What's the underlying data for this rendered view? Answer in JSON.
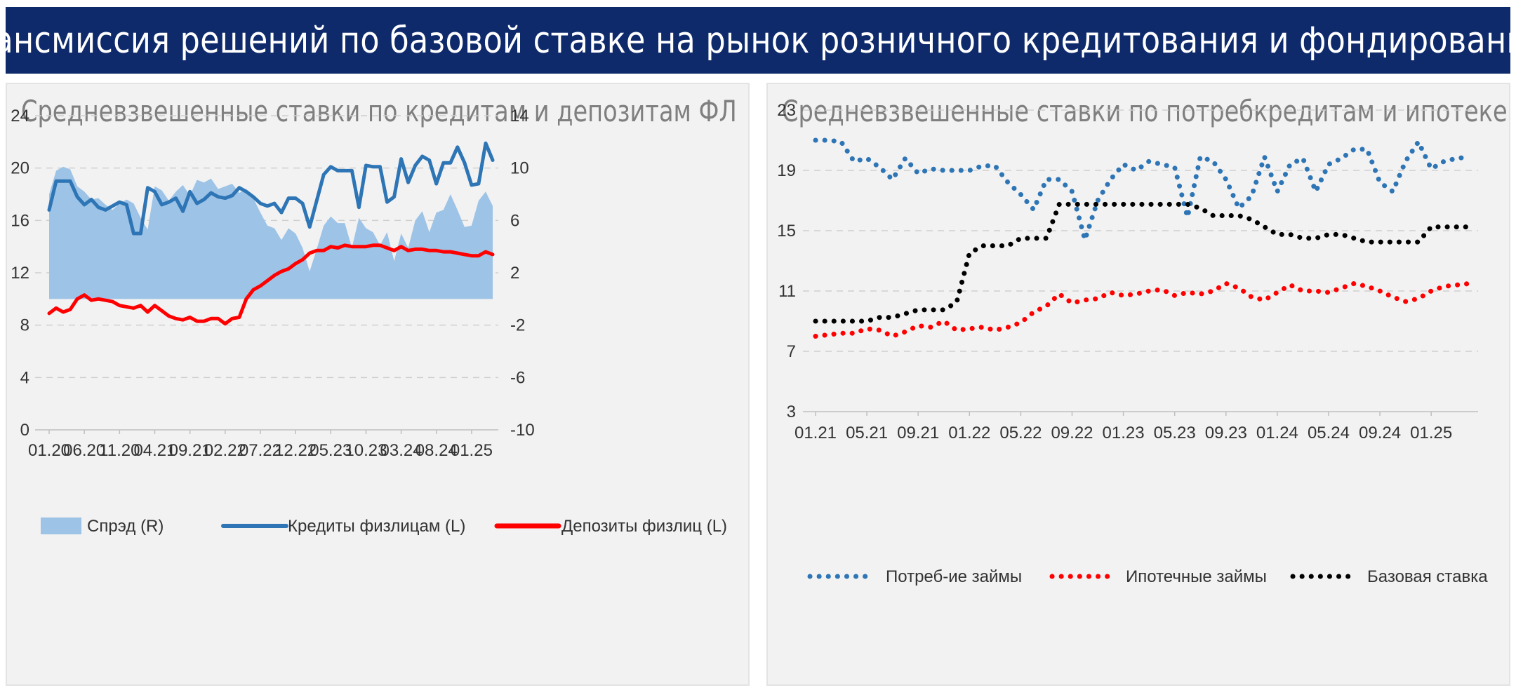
{
  "banner": {
    "title": "Трансмиссия решений по базовой ставке на рынок розничного кредитования и фондирования*"
  },
  "colors": {
    "banner_bg": "#0e2a6b",
    "panel_bg": "#f2f2f2",
    "credit": "#2e75b6",
    "deposit": "#ff0000",
    "spread": "#9dc3e6",
    "consumer": "#2e75b6",
    "mortgage": "#ff0000",
    "key_rate": "#000000"
  },
  "chart_data": [
    {
      "type": "line",
      "title": "Средневзвешенные ставки по кредитам и депозитам ФЛ",
      "x_tick_labels": [
        "01.20",
        "06.20",
        "11.20",
        "04.21",
        "09.21",
        "02.22",
        "07.22",
        "12.22",
        "05.23",
        "10.23",
        "03.24",
        "08.24",
        "01.25"
      ],
      "x": [
        "01.20",
        "02.20",
        "03.20",
        "04.20",
        "05.20",
        "06.20",
        "07.20",
        "08.20",
        "09.20",
        "10.20",
        "11.20",
        "12.20",
        "01.21",
        "02.21",
        "03.21",
        "04.21",
        "05.21",
        "06.21",
        "07.21",
        "08.21",
        "09.21",
        "10.21",
        "11.21",
        "12.21",
        "01.22",
        "02.22",
        "03.22",
        "04.22",
        "05.22",
        "06.22",
        "07.22",
        "08.22",
        "09.22",
        "10.22",
        "11.22",
        "12.22",
        "01.23",
        "02.23",
        "03.23",
        "04.23",
        "05.23",
        "06.23",
        "07.23",
        "08.23",
        "09.23",
        "10.23",
        "11.23",
        "12.23",
        "01.24",
        "02.24",
        "03.24",
        "04.24",
        "05.24",
        "06.24",
        "07.24",
        "08.24",
        "09.24",
        "10.24",
        "11.24",
        "12.24",
        "01.25",
        "02.25",
        "03.25",
        "04.25"
      ],
      "y_left_ticks": [
        "0",
        "4",
        "8",
        "12",
        "16",
        "20",
        "24"
      ],
      "y_right_ticks": [
        "-10",
        "-6",
        "-2",
        "2",
        "6",
        "10",
        "14"
      ],
      "ylim_left": [
        0,
        24
      ],
      "ylim_right": [
        -10,
        14
      ],
      "grid": true,
      "legend": "bottom",
      "series": [
        {
          "name": "Спрэд (R)",
          "axis": "right",
          "kind": "area",
          "values": [
            8.0,
            9.8,
            10.1,
            9.9,
            8.6,
            8.2,
            7.6,
            7.7,
            7.2,
            6.8,
            7.3,
            7.6,
            7.3,
            6.2,
            5.3,
            8.6,
            8.3,
            7.5,
            8.2,
            8.7,
            7.9,
            9.1,
            8.9,
            9.2,
            8.4,
            8.6,
            8.8,
            8.1,
            8.4,
            7.7,
            6.6,
            5.6,
            5.4,
            4.5,
            5.4,
            5.0,
            3.9,
            2.1,
            3.8,
            5.6,
            6.3,
            5.8,
            5.8,
            3.9,
            6.2,
            5.4,
            5.1,
            4.1,
            5.1,
            2.9,
            5.0,
            3.9,
            6.0,
            6.7,
            5.1,
            6.6,
            6.8,
            8.0,
            6.8,
            5.5,
            5.6,
            7.5,
            8.2,
            7.1
          ]
        },
        {
          "name": "Кредиты физлицам (L)",
          "axis": "left",
          "kind": "line",
          "values": [
            16.8,
            19.0,
            19.0,
            19.0,
            17.8,
            17.2,
            17.6,
            17.0,
            16.8,
            17.1,
            17.4,
            17.2,
            15.0,
            15.0,
            18.5,
            18.2,
            17.2,
            17.4,
            17.7,
            16.7,
            18.2,
            17.3,
            17.6,
            18.1,
            17.8,
            17.7,
            17.9,
            18.5,
            18.2,
            17.8,
            17.3,
            17.1,
            17.3,
            16.6,
            17.7,
            17.7,
            17.3,
            15.5,
            17.5,
            19.5,
            20.1,
            19.8,
            19.8,
            19.8,
            17.0,
            20.2,
            20.1,
            20.1,
            17.4,
            17.8,
            20.7,
            18.9,
            20.2,
            20.9,
            20.6,
            18.8,
            20.4,
            20.4,
            21.6,
            20.4,
            18.7,
            18.8,
            21.9,
            20.6
          ]
        },
        {
          "name": "Депозиты физлиц (L)",
          "axis": "left",
          "kind": "line",
          "values": [
            8.9,
            9.3,
            9.0,
            9.2,
            10.0,
            10.3,
            9.9,
            10.0,
            9.9,
            9.8,
            9.5,
            9.4,
            9.3,
            9.5,
            9.0,
            9.5,
            9.1,
            8.7,
            8.5,
            8.4,
            8.6,
            8.3,
            8.3,
            8.5,
            8.5,
            8.1,
            8.5,
            8.6,
            10.0,
            10.7,
            11.0,
            11.4,
            11.8,
            12.1,
            12.3,
            12.7,
            13.0,
            13.5,
            13.7,
            13.7,
            14.0,
            13.9,
            14.1,
            14.0,
            14.0,
            14.0,
            14.1,
            14.1,
            13.9,
            13.7,
            14.0,
            13.7,
            13.8,
            13.8,
            13.7,
            13.7,
            13.6,
            13.6,
            13.5,
            13.4,
            13.3,
            13.3,
            13.6,
            13.4
          ]
        }
      ]
    },
    {
      "type": "line",
      "title": "Средневзвешенные ставки по потребкредитам и ипотеке",
      "x_tick_labels": [
        "01.21",
        "05.21",
        "09.21",
        "01.22",
        "05.22",
        "09.22",
        "01.23",
        "05.23",
        "09.23",
        "01.24",
        "05.24",
        "09.24",
        "01.25"
      ],
      "x": [
        "01.21",
        "02.21",
        "03.21",
        "04.21",
        "05.21",
        "06.21",
        "07.21",
        "08.21",
        "09.21",
        "10.21",
        "11.21",
        "12.21",
        "01.22",
        "02.22",
        "03.22",
        "04.22",
        "05.22",
        "06.22",
        "07.22",
        "08.22",
        "09.22",
        "10.22",
        "11.22",
        "12.22",
        "01.23",
        "02.23",
        "03.23",
        "04.23",
        "05.23",
        "06.23",
        "07.23",
        "08.23",
        "09.23",
        "10.23",
        "11.23",
        "12.23",
        "01.24",
        "02.24",
        "03.24",
        "04.24",
        "05.24",
        "06.24",
        "07.24",
        "08.24",
        "09.24",
        "10.24",
        "11.24",
        "12.24",
        "01.25",
        "02.25",
        "03.25",
        "04.25"
      ],
      "y_ticks": [
        "3",
        "7",
        "11",
        "15",
        "19",
        "23"
      ],
      "ylim": [
        3,
        23
      ],
      "grid": true,
      "legend": "bottom",
      "series": [
        {
          "name": "Потреб-ие займы",
          "style": "dotted",
          "values": [
            21.0,
            21.0,
            20.9,
            19.6,
            19.8,
            19.2,
            18.4,
            19.8,
            18.8,
            19.1,
            19.0,
            19.0,
            19.0,
            19.3,
            19.3,
            18.2,
            17.4,
            16.4,
            18.4,
            18.4,
            17.6,
            14.4,
            17.0,
            18.4,
            19.4,
            19.0,
            19.6,
            19.4,
            19.2,
            15.9,
            19.9,
            19.6,
            18.4,
            16.5,
            17.3,
            19.9,
            17.6,
            19.4,
            19.8,
            17.6,
            19.4,
            19.8,
            20.4,
            20.4,
            18.2,
            17.6,
            19.6,
            20.9,
            19.1,
            19.6,
            19.8,
            19.9
          ]
        },
        {
          "name": "Ипотечные займы",
          "style": "dotted",
          "values": [
            8.0,
            8.1,
            8.2,
            8.2,
            8.5,
            8.4,
            8.0,
            8.3,
            8.7,
            8.6,
            9.0,
            8.4,
            8.5,
            8.6,
            8.4,
            8.6,
            8.9,
            9.6,
            10.0,
            10.8,
            10.2,
            10.4,
            10.5,
            10.9,
            10.7,
            10.8,
            11.0,
            11.1,
            10.7,
            10.9,
            10.8,
            11.0,
            11.5,
            11.2,
            10.6,
            10.4,
            10.9,
            11.4,
            11.0,
            11.0,
            10.9,
            11.2,
            11.5,
            11.3,
            11.0,
            10.6,
            10.3,
            10.5,
            11.0,
            11.3,
            11.4,
            11.5
          ]
        },
        {
          "name": "Базовая ставка",
          "style": "dotted",
          "values": [
            9.0,
            9.0,
            9.0,
            9.0,
            9.0,
            9.25,
            9.25,
            9.5,
            9.75,
            9.75,
            9.75,
            10.25,
            13.5,
            14.0,
            14.0,
            14.0,
            14.5,
            14.5,
            14.5,
            16.75,
            16.75,
            16.75,
            16.75,
            16.75,
            16.75,
            16.75,
            16.75,
            16.75,
            16.75,
            16.75,
            16.5,
            16.0,
            16.0,
            16.0,
            15.75,
            15.25,
            14.75,
            14.75,
            14.5,
            14.5,
            14.75,
            14.75,
            14.5,
            14.25,
            14.25,
            14.25,
            14.25,
            14.25,
            15.25,
            15.25,
            15.25,
            15.25
          ]
        }
      ]
    }
  ]
}
